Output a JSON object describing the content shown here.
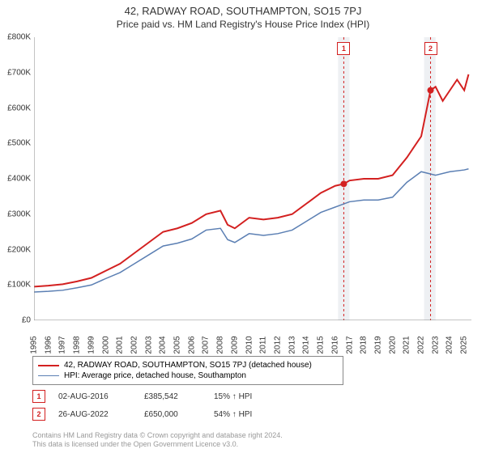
{
  "title": "42, RADWAY ROAD, SOUTHAMPTON, SO15 7PJ",
  "subtitle": "Price paid vs. HM Land Registry's House Price Index (HPI)",
  "chart": {
    "type": "line",
    "background_color": "#ffffff",
    "grid_color": "#ffffff",
    "xlim": [
      1995,
      2025.5
    ],
    "ylim": [
      0,
      800000
    ],
    "ytick_step": 100000,
    "ytick_prefix": "£",
    "ytick_suffix": "K",
    "xticks": [
      1995,
      1996,
      1997,
      1998,
      1999,
      2000,
      2001,
      2002,
      2003,
      2004,
      2005,
      2006,
      2007,
      2008,
      2009,
      2010,
      2011,
      2012,
      2013,
      2014,
      2015,
      2016,
      2017,
      2018,
      2019,
      2020,
      2021,
      2022,
      2023,
      2024,
      2025
    ],
    "highlight_bands": [
      {
        "x_start": 2016.2,
        "x_end": 2017.0,
        "color": "#eef0f3"
      },
      {
        "x_start": 2022.2,
        "x_end": 2023.0,
        "color": "#eef0f3"
      }
    ],
    "series": [
      {
        "name": "42, RADWAY ROAD, SOUTHAMPTON, SO15 7PJ (detached house)",
        "color": "#d32020",
        "line_width": 2,
        "data": [
          [
            1995,
            95000
          ],
          [
            1996,
            98000
          ],
          [
            1997,
            102000
          ],
          [
            1998,
            110000
          ],
          [
            1999,
            120000
          ],
          [
            2000,
            140000
          ],
          [
            2001,
            160000
          ],
          [
            2002,
            190000
          ],
          [
            2003,
            220000
          ],
          [
            2004,
            250000
          ],
          [
            2005,
            260000
          ],
          [
            2006,
            275000
          ],
          [
            2007,
            300000
          ],
          [
            2008,
            310000
          ],
          [
            2008.5,
            270000
          ],
          [
            2009,
            260000
          ],
          [
            2010,
            290000
          ],
          [
            2011,
            285000
          ],
          [
            2012,
            290000
          ],
          [
            2013,
            300000
          ],
          [
            2014,
            330000
          ],
          [
            2015,
            360000
          ],
          [
            2016,
            380000
          ],
          [
            2016.6,
            385542
          ],
          [
            2017,
            395000
          ],
          [
            2018,
            400000
          ],
          [
            2019,
            400000
          ],
          [
            2020,
            410000
          ],
          [
            2021,
            460000
          ],
          [
            2022,
            520000
          ],
          [
            2022.65,
            650000
          ],
          [
            2023,
            660000
          ],
          [
            2023.5,
            620000
          ],
          [
            2024,
            650000
          ],
          [
            2024.5,
            680000
          ],
          [
            2025,
            650000
          ],
          [
            2025.3,
            695000
          ]
        ]
      },
      {
        "name": "HPI: Average price, detached house, Southampton",
        "color": "#5b7fb3",
        "line_width": 1.5,
        "data": [
          [
            1995,
            80000
          ],
          [
            1996,
            82000
          ],
          [
            1997,
            85000
          ],
          [
            1998,
            92000
          ],
          [
            1999,
            100000
          ],
          [
            2000,
            118000
          ],
          [
            2001,
            135000
          ],
          [
            2002,
            160000
          ],
          [
            2003,
            185000
          ],
          [
            2004,
            210000
          ],
          [
            2005,
            218000
          ],
          [
            2006,
            230000
          ],
          [
            2007,
            255000
          ],
          [
            2008,
            260000
          ],
          [
            2008.5,
            228000
          ],
          [
            2009,
            220000
          ],
          [
            2010,
            245000
          ],
          [
            2011,
            240000
          ],
          [
            2012,
            245000
          ],
          [
            2013,
            255000
          ],
          [
            2014,
            280000
          ],
          [
            2015,
            305000
          ],
          [
            2016,
            320000
          ],
          [
            2017,
            335000
          ],
          [
            2018,
            340000
          ],
          [
            2019,
            340000
          ],
          [
            2020,
            348000
          ],
          [
            2021,
            390000
          ],
          [
            2022,
            420000
          ],
          [
            2023,
            410000
          ],
          [
            2024,
            420000
          ],
          [
            2025,
            425000
          ],
          [
            2025.3,
            428000
          ]
        ]
      }
    ],
    "sale_markers": [
      {
        "n": 1,
        "x": 2016.6,
        "y": 385542,
        "color": "#d32020"
      },
      {
        "n": 2,
        "x": 2022.65,
        "y": 650000,
        "color": "#d32020"
      }
    ],
    "sale_vlines_color": "#d32020",
    "sale_vlines_dash": "3,3"
  },
  "legend": {
    "items": [
      {
        "label": "42, RADWAY ROAD, SOUTHAMPTON, SO15 7PJ (detached house)",
        "color": "#d32020",
        "weight": 2
      },
      {
        "label": "HPI: Average price, detached house, Southampton",
        "color": "#5b7fb3",
        "weight": 1.5
      }
    ]
  },
  "sales": [
    {
      "n": "1",
      "date": "02-AUG-2016",
      "price": "£385,542",
      "delta": "15% ↑ HPI"
    },
    {
      "n": "2",
      "date": "26-AUG-2022",
      "price": "£650,000",
      "delta": "54% ↑ HPI"
    }
  ],
  "footer_line1": "Contains HM Land Registry data © Crown copyright and database right 2024.",
  "footer_line2": "This data is licensed under the Open Government Licence v3.0."
}
